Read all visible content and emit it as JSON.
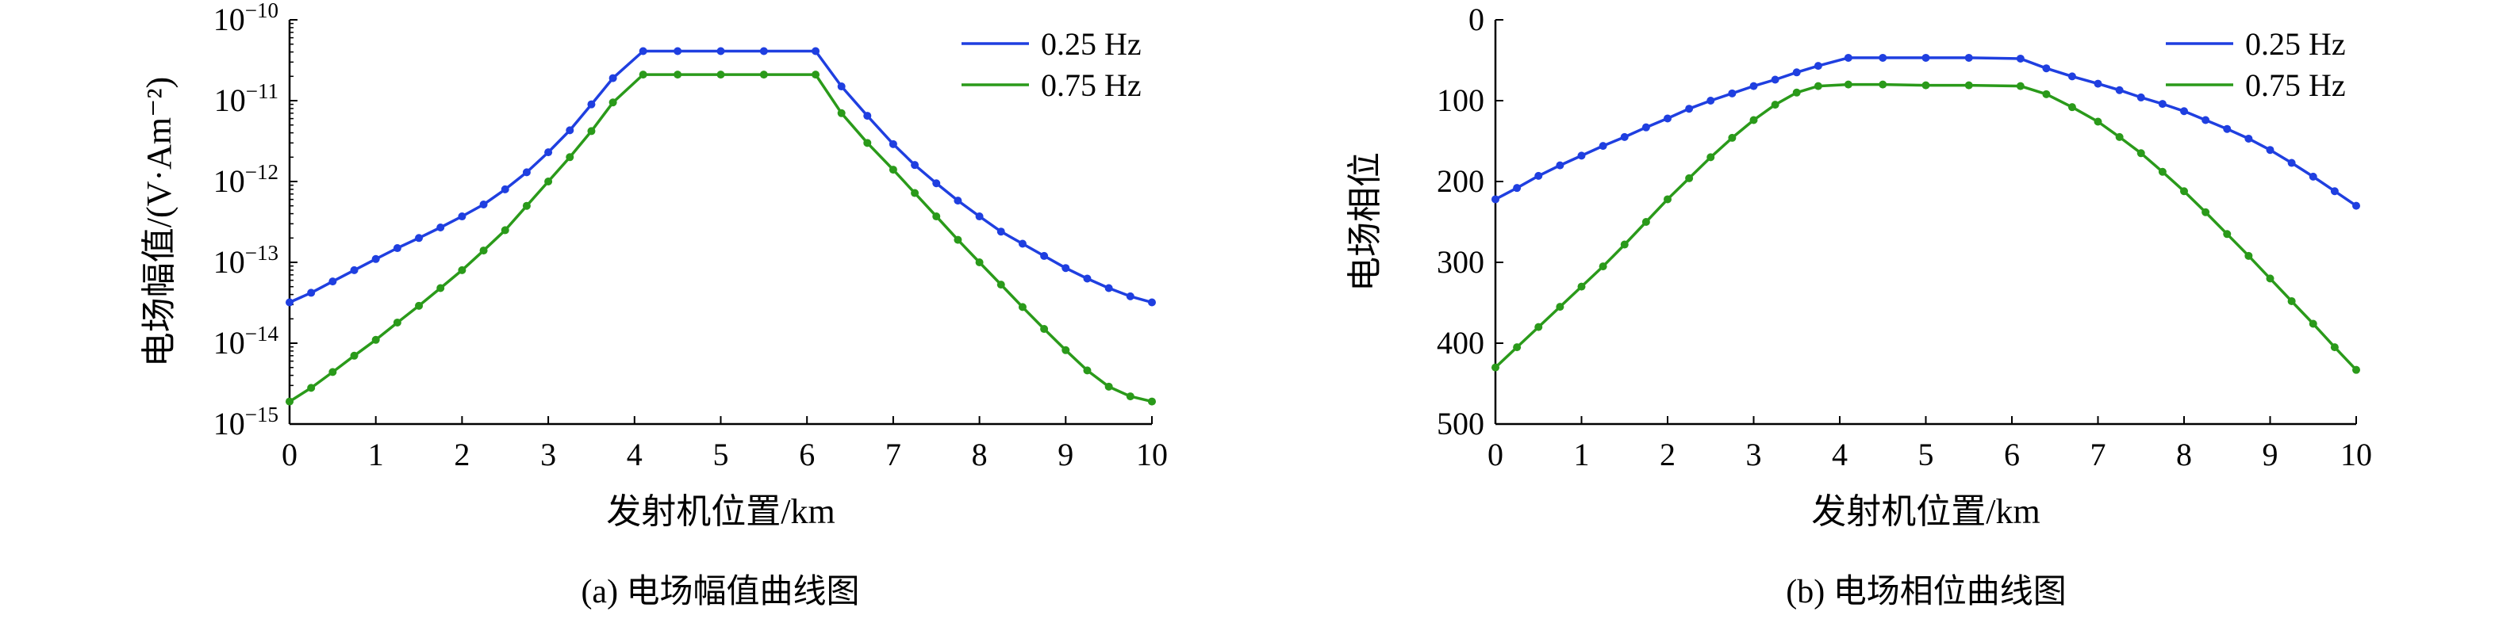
{
  "chart_data": [
    {
      "type": "line",
      "caption": "(a) 电场幅值曲线图",
      "xlabel": "发射机位置/km",
      "ylabel": "电场幅值/(V·Am⁻²)",
      "yscale": "log",
      "xlim": [
        0,
        10
      ],
      "ylim": [
        1e-15,
        1e-10
      ],
      "xticks": [
        0,
        1,
        2,
        3,
        4,
        5,
        6,
        7,
        8,
        9,
        10
      ],
      "yticks": [
        {
          "base": "10",
          "exp": "−15"
        },
        {
          "base": "10",
          "exp": "−14"
        },
        {
          "base": "10",
          "exp": "−13"
        },
        {
          "base": "10",
          "exp": "−12"
        },
        {
          "base": "10",
          "exp": "−11"
        },
        {
          "base": "10",
          "exp": "−10"
        }
      ],
      "legend_position": "top-right",
      "x": [
        0,
        0.25,
        0.5,
        0.75,
        1,
        1.25,
        1.5,
        1.75,
        2,
        2.25,
        2.5,
        2.75,
        3,
        3.25,
        3.5,
        3.75,
        4.1,
        4.5,
        5,
        5.5,
        6.1,
        6.4,
        6.7,
        7,
        7.25,
        7.5,
        7.75,
        8,
        8.25,
        8.5,
        8.75,
        9,
        9.25,
        9.5,
        9.75,
        10
      ],
      "series": [
        {
          "name": "0.25 Hz",
          "color": "#1f3fe0",
          "values": [
            3.2e-14,
            4.2e-14,
            5.8e-14,
            8e-14,
            1.1e-13,
            1.5e-13,
            2e-13,
            2.7e-13,
            3.7e-13,
            5.2e-13,
            8e-13,
            1.3e-12,
            2.3e-12,
            4.3e-12,
            9e-12,
            1.9e-11,
            4.1e-11,
            4.1e-11,
            4.1e-11,
            4.1e-11,
            4.1e-11,
            1.5e-11,
            6.5e-12,
            2.9e-12,
            1.6e-12,
            9.5e-13,
            5.8e-13,
            3.7e-13,
            2.4e-13,
            1.7e-13,
            1.2e-13,
            8.5e-14,
            6.3e-14,
            4.8e-14,
            3.8e-14,
            3.2e-14
          ]
        },
        {
          "name": "0.75 Hz",
          "color": "#2a9a1a",
          "values": [
            1.9e-15,
            2.8e-15,
            4.4e-15,
            7e-15,
            1.1e-14,
            1.8e-14,
            2.9e-14,
            4.8e-14,
            8e-14,
            1.4e-13,
            2.5e-13,
            5e-13,
            1e-12,
            2e-12,
            4.2e-12,
            9.5e-12,
            2.1e-11,
            2.1e-11,
            2.1e-11,
            2.1e-11,
            2.1e-11,
            7e-12,
            3e-12,
            1.4e-12,
            7.2e-13,
            3.7e-13,
            1.9e-13,
            1e-13,
            5.3e-14,
            2.8e-14,
            1.5e-14,
            8.2e-15,
            4.6e-15,
            2.9e-15,
            2.2e-15,
            1.9e-15
          ]
        }
      ]
    },
    {
      "type": "line",
      "caption": "(b) 电场相位曲线图",
      "xlabel": "发射机位置/km",
      "ylabel": "电场相位",
      "y_inverted": true,
      "xlim": [
        0,
        10
      ],
      "ylim": [
        0,
        500
      ],
      "xticks": [
        0,
        1,
        2,
        3,
        4,
        5,
        6,
        7,
        8,
        9,
        10
      ],
      "yticks": [
        0,
        100,
        200,
        300,
        400,
        500
      ],
      "legend_position": "top-right",
      "x": [
        0,
        0.25,
        0.5,
        0.75,
        1,
        1.25,
        1.5,
        1.75,
        2,
        2.25,
        2.5,
        2.75,
        3,
        3.25,
        3.5,
        3.75,
        4.1,
        4.5,
        5,
        5.5,
        6.1,
        6.4,
        6.7,
        7,
        7.25,
        7.5,
        7.75,
        8,
        8.25,
        8.5,
        8.75,
        9,
        9.25,
        9.5,
        9.75,
        10
      ],
      "series": [
        {
          "name": "0.25 Hz",
          "color": "#1f3fe0",
          "values": [
            222,
            208,
            193,
            180,
            168,
            156,
            145,
            133,
            122,
            110,
            100,
            91,
            82,
            74,
            65,
            57,
            47,
            47,
            47,
            47,
            48,
            60,
            70,
            79,
            87,
            96,
            104,
            113,
            124,
            135,
            147,
            161,
            177,
            194,
            212,
            230
          ]
        },
        {
          "name": "0.75 Hz",
          "color": "#2a9a1a",
          "values": [
            430,
            405,
            380,
            355,
            330,
            305,
            278,
            250,
            222,
            196,
            170,
            146,
            124,
            105,
            90,
            82,
            80,
            80,
            81,
            81,
            82,
            92,
            108,
            126,
            145,
            165,
            188,
            212,
            238,
            265,
            292,
            320,
            348,
            376,
            405,
            433
          ]
        }
      ]
    }
  ]
}
